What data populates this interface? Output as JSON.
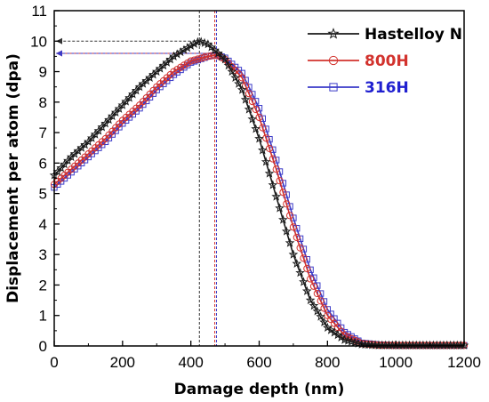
{
  "chart_data": {
    "type": "line",
    "xlabel": "Damage depth (nm)",
    "ylabel": "Displacement per atom (dpa)",
    "xlim": [
      0,
      1200
    ],
    "ylim": [
      0,
      11
    ],
    "xticks": [
      "0",
      "200",
      "400",
      "600",
      "800",
      "1000",
      "1200"
    ],
    "yticks": [
      "0",
      "1",
      "2",
      "3",
      "4",
      "5",
      "6",
      "7",
      "8",
      "9",
      "10",
      "11"
    ],
    "legend_position": "top-right",
    "peak_markers": [
      {
        "series": "Hastelloy N",
        "x": 425,
        "y": 10.0,
        "color": "#333333"
      },
      {
        "series": "800H",
        "x": 470,
        "y": 9.6,
        "color": "#d2322d"
      },
      {
        "series": "316H",
        "x": 475,
        "y": 9.6,
        "color": "#3a3ac8"
      }
    ],
    "series": [
      {
        "name": "Hastelloy N",
        "color": "#1a1a1a",
        "label_color": "#000000",
        "marker": "star",
        "x": [
          0,
          50,
          100,
          150,
          200,
          250,
          300,
          350,
          400,
          425,
          450,
          500,
          550,
          600,
          650,
          700,
          750,
          800,
          850,
          900,
          950,
          1000,
          1050,
          1100,
          1150,
          1200
        ],
        "y": [
          5.6,
          6.2,
          6.7,
          7.3,
          7.9,
          8.5,
          9.0,
          9.5,
          9.85,
          10.0,
          9.9,
          9.4,
          8.4,
          6.8,
          4.9,
          3.0,
          1.5,
          0.6,
          0.2,
          0.05,
          0.02,
          0.02,
          0.02,
          0.02,
          0.02,
          0.02
        ]
      },
      {
        "name": "800H",
        "color": "#d2322d",
        "label_color": "#d2322d",
        "marker": "circle",
        "x": [
          0,
          50,
          100,
          150,
          200,
          250,
          300,
          350,
          400,
          450,
          475,
          500,
          550,
          600,
          650,
          700,
          750,
          800,
          850,
          900,
          950,
          1000,
          1050,
          1100,
          1150,
          1200
        ],
        "y": [
          5.3,
          5.8,
          6.3,
          6.8,
          7.4,
          7.9,
          8.5,
          9.0,
          9.35,
          9.5,
          9.55,
          9.4,
          8.8,
          7.5,
          5.8,
          3.9,
          2.2,
          1.0,
          0.35,
          0.08,
          0.03,
          0.02,
          0.02,
          0.02,
          0.02,
          0.02
        ]
      },
      {
        "name": "316H",
        "color": "#3a3ac8",
        "label_color": "#2020d0",
        "marker": "square",
        "x": [
          0,
          50,
          100,
          150,
          200,
          250,
          300,
          350,
          400,
          450,
          475,
          500,
          550,
          600,
          650,
          700,
          750,
          800,
          850,
          900,
          950,
          1000,
          1050,
          1100,
          1150,
          1200
        ],
        "y": [
          5.2,
          5.7,
          6.2,
          6.7,
          7.3,
          7.8,
          8.4,
          8.9,
          9.3,
          9.5,
          9.55,
          9.45,
          8.95,
          7.8,
          6.1,
          4.2,
          2.5,
          1.2,
          0.45,
          0.1,
          0.04,
          0.02,
          0.02,
          0.02,
          0.02,
          0.02
        ]
      }
    ]
  }
}
